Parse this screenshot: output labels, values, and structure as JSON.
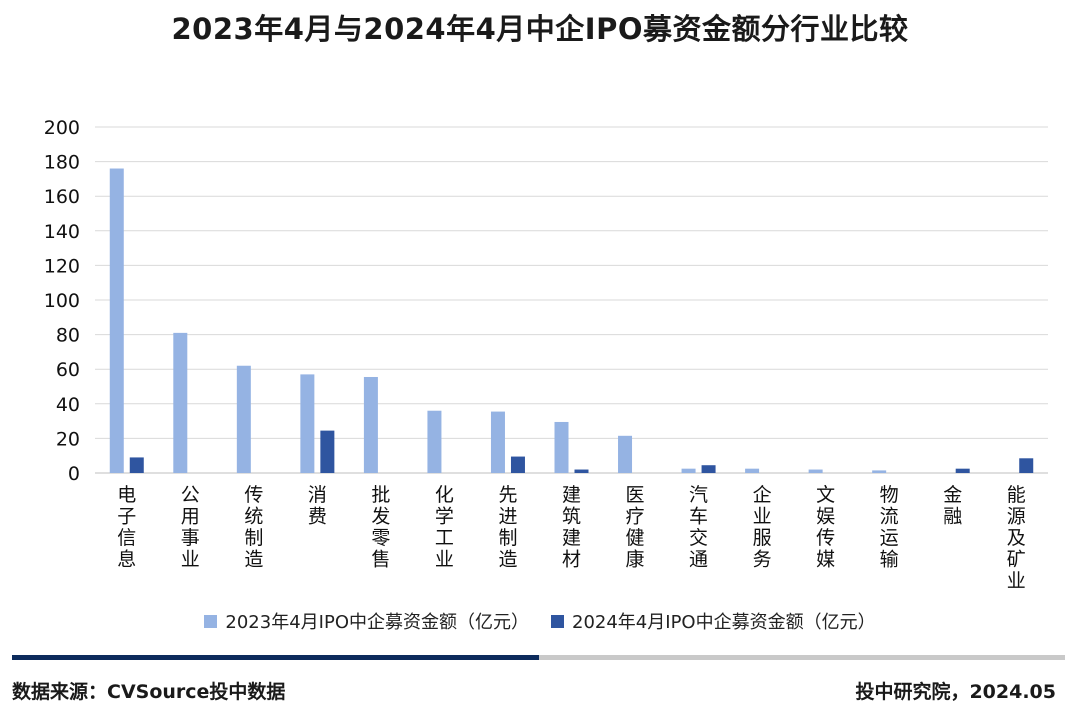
{
  "colors": {
    "series1": "#95b3e3",
    "series2": "#2f55a0",
    "grid": "#d9d9d9"
  },
  "footer": {
    "source": "数据来源：CVSource投中数据",
    "publisher": "投中研究院，2024.05"
  },
  "chart_data": {
    "type": "bar",
    "title": "2023年4月与2024年4月中企IPO募资金额分行业比较",
    "categories": [
      "电子信息",
      "公用事业",
      "传统制造",
      "消费",
      "批发零售",
      "化学工业",
      "先进制造",
      "建筑建材",
      "医疗健康",
      "汽车交通",
      "企业服务",
      "文娱传媒",
      "物流运输",
      "金融",
      "能源及矿业"
    ],
    "series": [
      {
        "name": "2023年4月IPO中企募资金额（亿元）",
        "values": [
          176,
          81,
          62,
          57,
          55.5,
          36,
          35.5,
          29.5,
          21.5,
          2.5,
          2.5,
          2,
          1.5,
          0,
          0
        ]
      },
      {
        "name": "2024年4月IPO中企募资金额（亿元）",
        "values": [
          9,
          0,
          0,
          24.5,
          0,
          0,
          9.5,
          2,
          0,
          4.5,
          0,
          0,
          0,
          2.5,
          8.5
        ]
      }
    ],
    "yticks": [
      "0",
      "20",
      "40",
      "60",
      "80",
      "100",
      "120",
      "140",
      "160",
      "180",
      "200"
    ],
    "ylim": [
      0,
      200
    ],
    "grid": true,
    "legend": "bottom"
  }
}
